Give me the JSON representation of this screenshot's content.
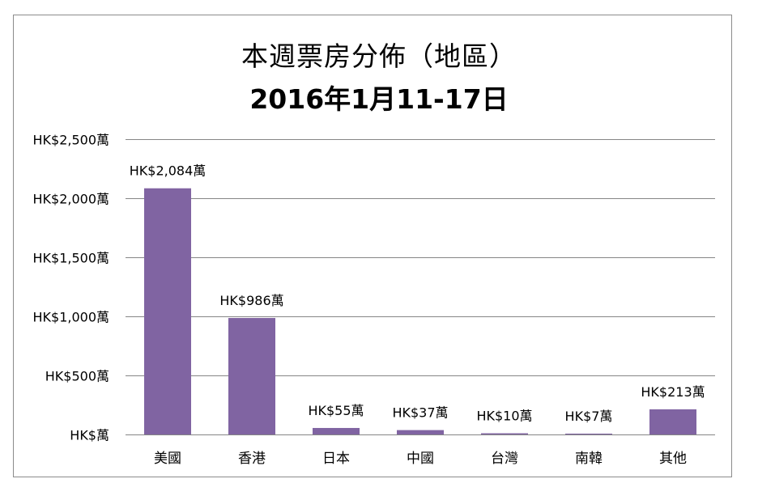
{
  "chart_data": {
    "type": "bar",
    "title": "本週票房分佈（地區）",
    "subtitle": "2016年1月11-17日",
    "categories": [
      "美國",
      "香港",
      "日本",
      "中國",
      "台灣",
      "南韓",
      "其他"
    ],
    "values": [
      2084,
      986,
      55,
      37,
      10,
      7,
      213
    ],
    "data_labels": [
      "HK$2,084萬",
      "HK$986萬",
      "HK$55萬",
      "HK$37萬",
      "HK$10萬",
      "HK$7萬",
      "HK$213萬"
    ],
    "y_ticks": [
      0,
      500,
      1000,
      1500,
      2000,
      2500
    ],
    "y_tick_labels": [
      "HK$萬",
      "HK$500萬",
      "HK$1,000萬",
      "HK$1,500萬",
      "HK$2,000萬",
      "HK$2,500萬"
    ],
    "ylim": [
      0,
      2500
    ],
    "xlabel": "",
    "ylabel": "",
    "grid": true,
    "legend": "none",
    "bar_color": "#8064a2",
    "grid_color": "#868686"
  }
}
